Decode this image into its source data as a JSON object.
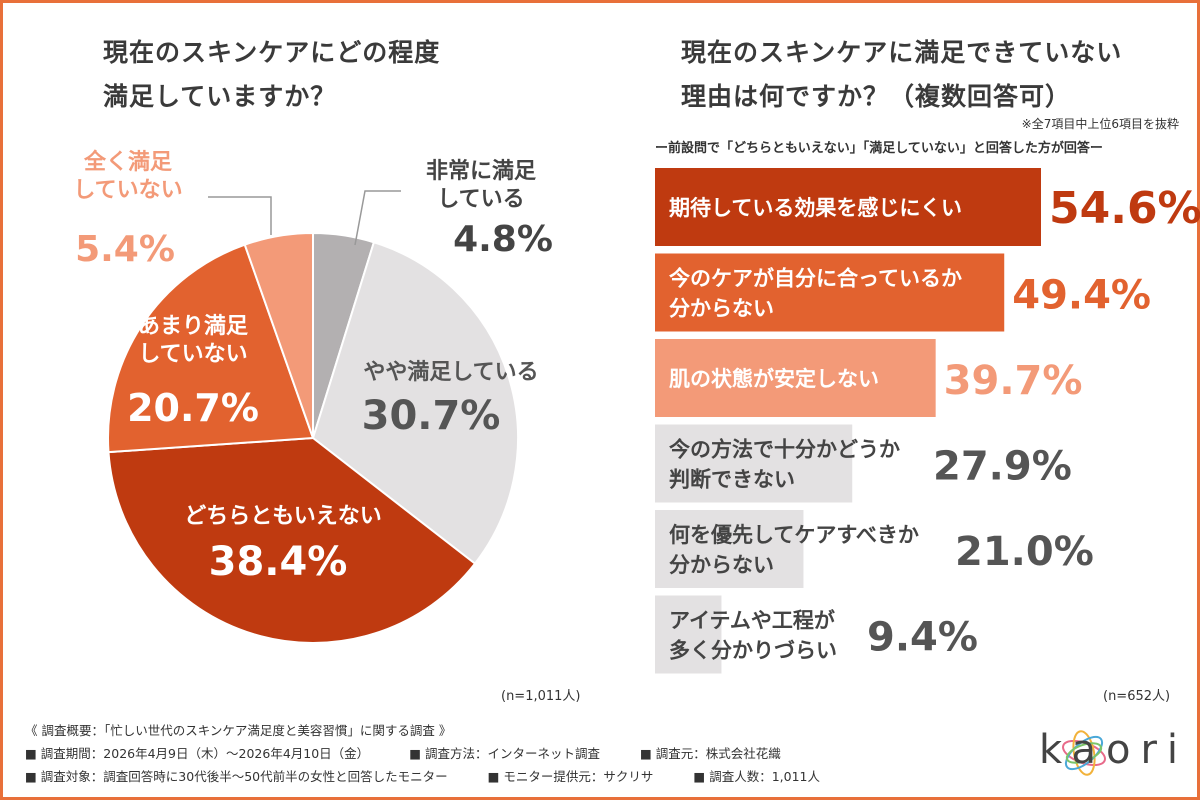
{
  "left_chart": {
    "title_line1": "現在のスキンケアにどの程度",
    "title_line2": "満足していますか？",
    "n_label": "(n=1,011人)"
  },
  "right_chart": {
    "title_line1": "現在のスキンケアに満足できていない",
    "title_line2": "理由は何ですか？（複数回答可）",
    "note": "※全7項目中上位6項目を抜粋",
    "subnote": "ー前設問で「どちらともいえない」「満足していない」と回答した方が回答ー",
    "n_label": "(n=652人)"
  },
  "footer": {
    "summary": "《 調査概要：「忙しい世代のスキンケア満足度と美容習慣」に関する調査 》",
    "row1": [
      "■ 調査期間：2026年4月9日（木）〜2026年4月10日（金）",
      "■ 調査方法：インターネット調査",
      "■ 調査元：株式会社花織"
    ],
    "row2": [
      "■ 調査対象：調査回答時に30代後半〜50代前半の女性と回答したモニター",
      "■ モニター提供元：サクリサ",
      "■ 調査人数：1,011人"
    ]
  },
  "logo": {
    "text": "kaori"
  },
  "chart_data": [
    {
      "type": "pie",
      "title": "現在のスキンケアにどの程度満足していますか？",
      "slices": [
        {
          "label": "非常に満足している",
          "lines": [
            "非常に満足",
            "している"
          ],
          "value": 4.8,
          "value_label": "4.8%",
          "color": "#b3b0b1"
        },
        {
          "label": "やや満足している",
          "lines": [
            "やや満足している"
          ],
          "value": 30.7,
          "value_label": "30.7%",
          "color": "#e3e1e2"
        },
        {
          "label": "どちらともいえない",
          "lines": [
            "どちらともいえない"
          ],
          "value": 38.4,
          "value_label": "38.4%",
          "color": "#bf3a10"
        },
        {
          "label": "あまり満足していない",
          "lines": [
            "あまり満足",
            "していない"
          ],
          "value": 20.7,
          "value_label": "20.7%",
          "color": "#e2622f"
        },
        {
          "label": "全く満足していない",
          "lines": [
            "全く満足",
            "していない"
          ],
          "value": 5.4,
          "value_label": "5.4%",
          "color": "#f39a78"
        }
      ]
    },
    {
      "type": "bar",
      "orientation": "horizontal",
      "title": "現在のスキンケアに満足できていない理由は何ですか？（複数回答可）",
      "bars": [
        {
          "lines": [
            "期待している効果を感じにくい"
          ],
          "value": 54.6,
          "value_label": "54.6%",
          "color": "#bf3a10",
          "text_color": "#ffffff",
          "value_color": "#bf3a10"
        },
        {
          "lines": [
            "今のケアが自分に合っているか",
            "分からない"
          ],
          "value": 49.4,
          "value_label": "49.4%",
          "color": "#e2622f",
          "text_color": "#ffffff",
          "value_color": "#e2622f"
        },
        {
          "lines": [
            "肌の状態が安定しない"
          ],
          "value": 39.7,
          "value_label": "39.7%",
          "color": "#f39a78",
          "text_color": "#ffffff",
          "value_color": "#f39a78"
        },
        {
          "lines": [
            "今の方法で十分かどうか",
            "判断できない"
          ],
          "value": 27.9,
          "value_label": "27.9%",
          "color": "#e3e1e2",
          "text_color": "#444444",
          "value_color": "#555555"
        },
        {
          "lines": [
            "何を優先してケアすべきか",
            "分からない"
          ],
          "value": 21.0,
          "value_label": "21.0%",
          "color": "#e3e1e2",
          "text_color": "#444444",
          "value_color": "#555555"
        },
        {
          "lines": [
            "アイテムや工程が",
            "多く分かりづらい"
          ],
          "value": 9.4,
          "value_label": "9.4%",
          "color": "#e3e1e2",
          "text_color": "#444444",
          "value_color": "#555555"
        }
      ]
    }
  ]
}
